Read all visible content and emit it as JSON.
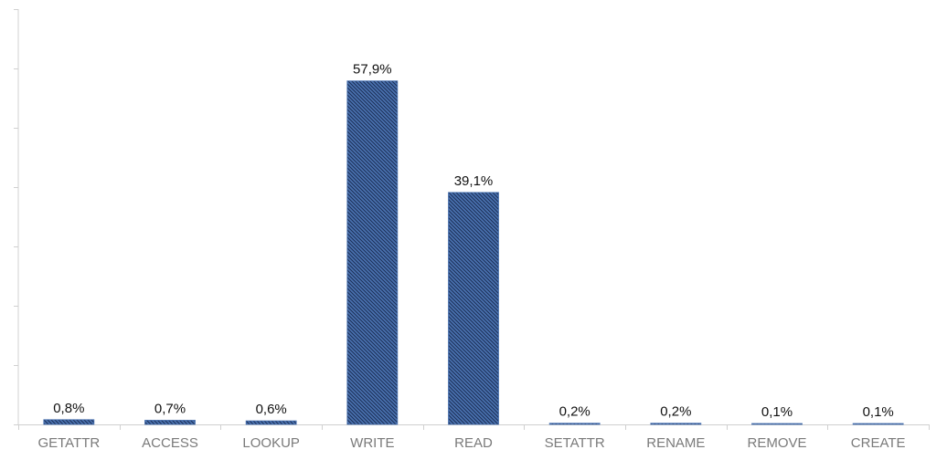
{
  "chart_data": {
    "type": "bar",
    "title": "",
    "xlabel": "",
    "ylabel": "",
    "ylim": [
      0,
      70
    ],
    "y_tick_step": 10,
    "y_tick_labels_visible": false,
    "grid": false,
    "legend": "none",
    "categories": [
      "GETATTR",
      "ACCESS",
      "LOOKUP",
      "WRITE",
      "READ",
      "SETATTR",
      "RENAME",
      "REMOVE",
      "CREATE"
    ],
    "values": [
      0.8,
      0.7,
      0.6,
      57.9,
      39.1,
      0.2,
      0.2,
      0.1,
      0.1
    ],
    "value_labels": [
      "0,8%",
      "0,7%",
      "0,6%",
      "57,9%",
      "39,1%",
      "0,2%",
      "0,2%",
      "0,1%",
      "0,1%"
    ]
  },
  "colors": {
    "bar_fill": "#4a72b0",
    "bar_hatch": "#1b2f57",
    "axis": "#d0d0d0"
  }
}
